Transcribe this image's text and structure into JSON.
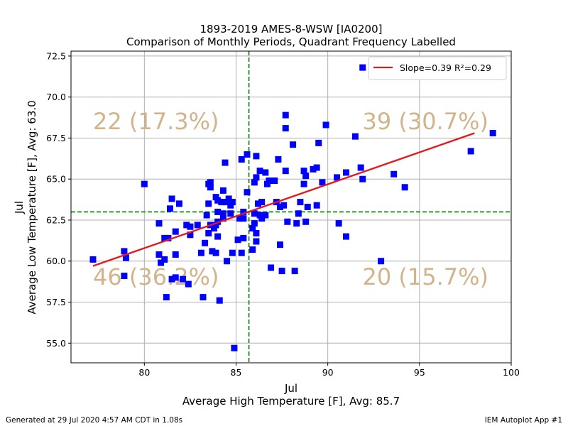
{
  "chart_data": {
    "type": "scatter",
    "title_line1": "1893-2019 AMES-8-WSW [IA0200]",
    "title_line2": "Comparison of Monthly Periods, Quadrant Frequency Labelled",
    "xlabel_line1": "Jul",
    "xlabel_line2": "Average High Temperature [F], Avg: 85.7",
    "ylabel_line1": "Jul",
    "ylabel_line2": "Average Low Temperature [F], Avg: 63.0",
    "xlim": [
      76,
      100
    ],
    "ylim": [
      53.8,
      72.8
    ],
    "x_ticks": [
      80,
      85,
      90,
      95,
      100
    ],
    "y_ticks": [
      55.0,
      57.5,
      60.0,
      62.5,
      65.0,
      67.5,
      70.0,
      72.5
    ],
    "x_tick_labels": [
      "80",
      "85",
      "90",
      "95",
      "100"
    ],
    "y_tick_labels": [
      "55.0",
      "57.5",
      "60.0",
      "62.5",
      "65.0",
      "67.5",
      "70.0",
      "72.5"
    ],
    "grid": true,
    "avg_x": 85.7,
    "avg_y": 63.0,
    "regression": {
      "slope": 0.39,
      "r2": 0.29,
      "x_start": 77.2,
      "y_start": 59.7,
      "x_end": 98,
      "y_end": 67.8
    },
    "legend": {
      "position": "top-right",
      "label": "Slope=0.39 R²=0.29"
    },
    "quadrants": {
      "top_left": "22 (17.3%)",
      "top_right": "39 (30.7%)",
      "bottom_left": "46 (36.2%)",
      "bottom_right": "20 (15.7%)"
    },
    "colors": {
      "points": "#0000ff",
      "regression": "#e31a1c",
      "avg_lines": "#008000",
      "quadrant_text": "#d2b48c"
    },
    "points": [
      [
        77.2,
        60.1
      ],
      [
        78.9,
        60.6
      ],
      [
        78.9,
        59.1
      ],
      [
        79.0,
        60.2
      ],
      [
        80.0,
        64.7
      ],
      [
        80.8,
        62.3
      ],
      [
        80.8,
        60.4
      ],
      [
        80.9,
        59.9
      ],
      [
        81.1,
        61.4
      ],
      [
        81.1,
        60.1
      ],
      [
        81.2,
        57.8
      ],
      [
        81.3,
        61.4
      ],
      [
        81.4,
        63.2
      ],
      [
        81.5,
        58.9
      ],
      [
        81.5,
        63.8
      ],
      [
        81.7,
        61.8
      ],
      [
        81.7,
        60.4
      ],
      [
        81.7,
        59.0
      ],
      [
        81.9,
        63.5
      ],
      [
        82.1,
        58.9
      ],
      [
        82.3,
        62.2
      ],
      [
        82.4,
        58.6
      ],
      [
        82.5,
        62.1
      ],
      [
        82.5,
        61.6
      ],
      [
        82.9,
        62.2
      ],
      [
        83.1,
        60.5
      ],
      [
        83.2,
        57.8
      ],
      [
        83.3,
        61.1
      ],
      [
        83.4,
        62.8
      ],
      [
        83.5,
        64.7
      ],
      [
        83.5,
        63.5
      ],
      [
        83.5,
        61.7
      ],
      [
        83.6,
        64.5
      ],
      [
        83.6,
        64.8
      ],
      [
        83.6,
        62.2
      ],
      [
        83.7,
        60.6
      ],
      [
        83.8,
        62.0
      ],
      [
        83.9,
        63.9
      ],
      [
        83.9,
        62.2
      ],
      [
        83.9,
        60.5
      ],
      [
        84.0,
        63.7
      ],
      [
        84.0,
        63.0
      ],
      [
        84.0,
        62.4
      ],
      [
        84.0,
        61.5
      ],
      [
        84.1,
        57.6
      ],
      [
        84.2,
        63.6
      ],
      [
        84.3,
        64.3
      ],
      [
        84.3,
        62.9
      ],
      [
        84.3,
        62.6
      ],
      [
        84.4,
        66.0
      ],
      [
        84.4,
        63.6
      ],
      [
        84.5,
        60.0
      ],
      [
        84.6,
        63.8
      ],
      [
        84.7,
        63.4
      ],
      [
        84.7,
        62.9
      ],
      [
        84.8,
        63.6
      ],
      [
        84.8,
        60.5
      ],
      [
        84.9,
        54.7
      ],
      [
        85.1,
        61.3
      ],
      [
        85.2,
        62.6
      ],
      [
        85.3,
        66.2
      ],
      [
        85.3,
        60.5
      ],
      [
        85.4,
        63.0
      ],
      [
        85.4,
        62.6
      ],
      [
        85.4,
        61.4
      ],
      [
        85.6,
        66.5
      ],
      [
        85.6,
        64.2
      ],
      [
        85.9,
        60.7
      ],
      [
        85.9,
        62.0
      ],
      [
        86.0,
        64.8
      ],
      [
        86.0,
        62.9
      ],
      [
        86.0,
        62.3
      ],
      [
        86.1,
        66.4
      ],
      [
        86.1,
        65.1
      ],
      [
        86.1,
        61.7
      ],
      [
        86.1,
        61.2
      ],
      [
        86.2,
        63.5
      ],
      [
        86.3,
        65.5
      ],
      [
        86.3,
        62.8
      ],
      [
        86.4,
        63.6
      ],
      [
        86.4,
        62.6
      ],
      [
        86.6,
        65.4
      ],
      [
        86.6,
        62.8
      ],
      [
        86.7,
        64.7
      ],
      [
        86.8,
        64.9
      ],
      [
        86.9,
        59.6
      ],
      [
        87.1,
        64.9
      ],
      [
        87.2,
        63.6
      ],
      [
        87.3,
        66.2
      ],
      [
        87.4,
        61.0
      ],
      [
        87.4,
        63.3
      ],
      [
        87.5,
        59.4
      ],
      [
        87.6,
        63.4
      ],
      [
        87.7,
        68.9
      ],
      [
        87.7,
        68.1
      ],
      [
        87.7,
        65.5
      ],
      [
        87.8,
        62.4
      ],
      [
        88.1,
        67.1
      ],
      [
        88.2,
        59.4
      ],
      [
        88.3,
        62.3
      ],
      [
        88.4,
        62.9
      ],
      [
        88.5,
        63.6
      ],
      [
        88.7,
        64.7
      ],
      [
        88.7,
        65.5
      ],
      [
        88.8,
        65.2
      ],
      [
        88.8,
        62.4
      ],
      [
        88.9,
        63.3
      ],
      [
        89.2,
        65.6
      ],
      [
        89.4,
        65.7
      ],
      [
        89.4,
        63.4
      ],
      [
        89.5,
        67.2
      ],
      [
        89.7,
        64.8
      ],
      [
        89.9,
        68.3
      ],
      [
        90.5,
        65.1
      ],
      [
        90.6,
        62.3
      ],
      [
        91.0,
        65.4
      ],
      [
        91.0,
        61.5
      ],
      [
        91.5,
        67.6
      ],
      [
        91.8,
        65.7
      ],
      [
        91.9,
        71.8
      ],
      [
        91.9,
        65.0
      ],
      [
        92.9,
        60.0
      ],
      [
        93.6,
        65.3
      ],
      [
        94.2,
        64.5
      ],
      [
        97.8,
        66.7
      ],
      [
        99.0,
        67.8
      ]
    ]
  },
  "footer": {
    "generated": "Generated at 29 Jul 2020 4:57 AM CDT in 1.08s",
    "app": "IEM Autoplot App #1"
  }
}
